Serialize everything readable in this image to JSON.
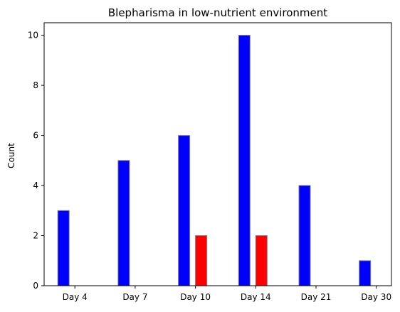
{
  "chart_data": {
    "type": "bar",
    "title": "Blepharisma in low-nutrient environment",
    "xlabel": "",
    "ylabel": "Count",
    "categories": [
      "Day 4",
      "Day 7",
      "Day 10",
      "Day 14",
      "Day 21",
      "Day 30"
    ],
    "series": [
      {
        "color": "#0000ff",
        "values": [
          3,
          5,
          6,
          10,
          4,
          1
        ]
      },
      {
        "color": "#ff0000",
        "values": [
          0,
          0,
          2,
          2,
          0,
          0
        ]
      }
    ],
    "ylim": [
      0,
      10.5
    ],
    "yticks": [
      0,
      2,
      4,
      6,
      8,
      10
    ],
    "grid": false,
    "bar_edge_color": "#808080"
  }
}
